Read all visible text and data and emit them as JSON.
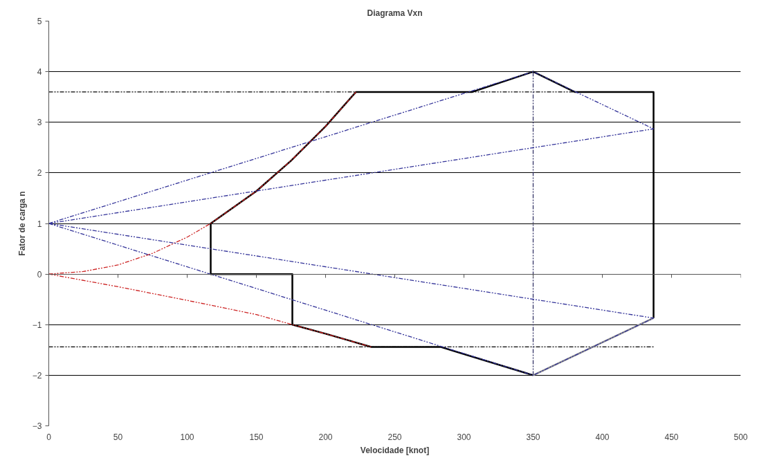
{
  "chart_data": {
    "type": "line",
    "title": "Diagrama Vxn",
    "xlabel": "Velocidade [knot]",
    "ylabel": "Fator de carga n",
    "xlim": [
      0,
      500
    ],
    "xticks": [
      0,
      50,
      100,
      150,
      200,
      250,
      300,
      350,
      400,
      450,
      500
    ],
    "ylim": [
      -3,
      5
    ],
    "yticks": [
      -3,
      -2,
      -1,
      0,
      1,
      2,
      3,
      4,
      5
    ],
    "grid": "y",
    "marker": "none",
    "series": [
      {
        "color": "#000000",
        "line_style": "dashed",
        "x": [
          0,
          437
        ],
        "values": [
          3.6,
          3.6
        ]
      },
      {
        "color": "#000000",
        "line_style": "dashed",
        "x": [
          0,
          437
        ],
        "values": [
          -1.44,
          -1.44
        ]
      },
      {
        "color": "#333366",
        "line_style": "dashed",
        "x": [
          350,
          350
        ],
        "values": [
          -2,
          4
        ]
      },
      {
        "color": "#000000",
        "line_style": "solid",
        "x": [
          350,
          283,
          233,
          200,
          176,
          176,
          117,
          117,
          150,
          175,
          200,
          222,
          306,
          350,
          380,
          437,
          437
        ],
        "values": [
          -2,
          -1.44,
          -1.44,
          -1.18,
          -1,
          0,
          0,
          1,
          1.64,
          2.24,
          2.92,
          3.6,
          3.6,
          4,
          3.6,
          3.6,
          -0.87
        ]
      },
      {
        "color": "#8c8c8c",
        "line_style": "solid",
        "x": [
          437,
          350
        ],
        "values": [
          -0.87,
          -2
        ]
      },
      {
        "color": "#cc2222",
        "line_style": "dashed",
        "x": [
          0,
          25,
          50,
          75,
          100,
          117,
          150,
          175,
          200,
          222
        ],
        "values": [
          0,
          0.05,
          0.18,
          0.41,
          0.73,
          1,
          1.64,
          2.24,
          2.92,
          3.6
        ]
      },
      {
        "color": "#cc2222",
        "line_style": "dashed",
        "x": [
          0,
          50,
          100,
          150,
          176,
          200,
          233
        ],
        "values": [
          0,
          -0.25,
          -0.52,
          -0.8,
          -1,
          -1.18,
          -1.44
        ]
      },
      {
        "color": "#333399",
        "line_style": "dashed",
        "x": [
          0,
          350,
          437
        ],
        "values": [
          1,
          4,
          2.87
        ]
      },
      {
        "color": "#333399",
        "line_style": "dashed",
        "x": [
          0,
          437
        ],
        "values": [
          1,
          2.87
        ]
      },
      {
        "color": "#333399",
        "line_style": "dashed",
        "x": [
          0,
          350,
          437
        ],
        "values": [
          1,
          -2,
          -0.87
        ]
      },
      {
        "color": "#333399",
        "line_style": "dashed",
        "x": [
          0,
          437
        ],
        "values": [
          1,
          -0.87
        ]
      }
    ]
  }
}
